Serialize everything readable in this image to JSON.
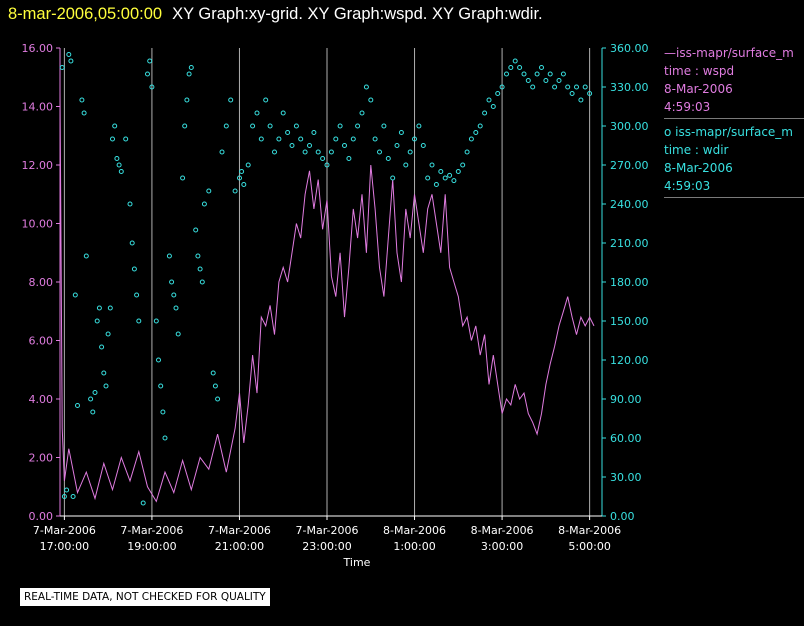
{
  "header": {
    "datetime": "8-mar-2006,05:00:00",
    "graphs": "XY Graph:xy-grid.  XY Graph:wspd.  XY Graph:wdir."
  },
  "colors": {
    "background": "#000000",
    "title_date": "#ffff3c",
    "wspd": "#e07ce0",
    "wdir": "#38e0e0",
    "grid": "#b0b0b0",
    "x_axis": "#ffffff"
  },
  "legend": {
    "wspd": {
      "name": "iss-mapr/surface_m",
      "field": "time : wspd",
      "date": "8-Mar-2006",
      "time": "4:59:03"
    },
    "wdir": {
      "name": "iss-mapr/surface_m",
      "field": "time : wdir",
      "date": "8-Mar-2006",
      "time": "4:59:03"
    }
  },
  "footer": {
    "notice": "REAL-TIME DATA, NOT CHECKED FOR QUALITY"
  },
  "chart_data": {
    "type": "line",
    "xlabel": "Time",
    "x_range_hours": [
      16.9,
      5.1
    ],
    "x_ticks": [
      {
        "date": "7-Mar-2006",
        "time": "17:00:00"
      },
      {
        "date": "7-Mar-2006",
        "time": "19:00:00"
      },
      {
        "date": "7-Mar-2006",
        "time": "21:00:00"
      },
      {
        "date": "7-Mar-2006",
        "time": "23:00:00"
      },
      {
        "date": "8-Mar-2006",
        "time": "1:00:00"
      },
      {
        "date": "8-Mar-2006",
        "time": "3:00:00"
      },
      {
        "date": "8-Mar-2006",
        "time": "5:00:00"
      }
    ],
    "x_tick_hours": [
      17,
      19,
      21,
      23,
      25,
      27,
      29
    ],
    "y_left": {
      "range": [
        0,
        16
      ],
      "ticks": [
        "0.00",
        "2.00",
        "4.00",
        "6.00",
        "8.00",
        "10.00",
        "12.00",
        "14.00",
        "16.00"
      ]
    },
    "y_right": {
      "range": [
        0,
        360
      ],
      "ticks": [
        "0.00",
        "30.00",
        "60.00",
        "90.00",
        "120.00",
        "150.00",
        "180.00",
        "210.00",
        "240.00",
        "270.00",
        "300.00",
        "330.00",
        "360.00"
      ]
    },
    "grid": "vertical",
    "series": [
      {
        "name": "iss-mapr/surface_m time : wspd",
        "axis": "left",
        "style": "line",
        "points": [
          [
            16.9,
            14.5
          ],
          [
            16.95,
            3.0
          ],
          [
            17.0,
            1.2
          ],
          [
            17.1,
            2.3
          ],
          [
            17.3,
            0.8
          ],
          [
            17.5,
            1.5
          ],
          [
            17.7,
            0.6
          ],
          [
            17.9,
            1.8
          ],
          [
            18.1,
            0.9
          ],
          [
            18.3,
            2.0
          ],
          [
            18.5,
            1.2
          ],
          [
            18.7,
            2.2
          ],
          [
            18.9,
            1.0
          ],
          [
            19.1,
            0.5
          ],
          [
            19.3,
            1.5
          ],
          [
            19.5,
            0.8
          ],
          [
            19.7,
            1.9
          ],
          [
            19.9,
            0.9
          ],
          [
            20.1,
            2.0
          ],
          [
            20.3,
            1.6
          ],
          [
            20.5,
            2.8
          ],
          [
            20.7,
            1.5
          ],
          [
            20.9,
            3.0
          ],
          [
            21.0,
            4.2
          ],
          [
            21.1,
            2.5
          ],
          [
            21.2,
            3.8
          ],
          [
            21.3,
            5.5
          ],
          [
            21.4,
            4.2
          ],
          [
            21.5,
            6.8
          ],
          [
            21.6,
            6.5
          ],
          [
            21.7,
            7.2
          ],
          [
            21.8,
            6.2
          ],
          [
            21.9,
            8.0
          ],
          [
            22.0,
            8.5
          ],
          [
            22.1,
            8.0
          ],
          [
            22.2,
            9.0
          ],
          [
            22.3,
            10.0
          ],
          [
            22.4,
            9.5
          ],
          [
            22.5,
            11.0
          ],
          [
            22.6,
            11.8
          ],
          [
            22.7,
            10.5
          ],
          [
            22.8,
            11.5
          ],
          [
            22.9,
            9.8
          ],
          [
            23.0,
            10.8
          ],
          [
            23.1,
            8.2
          ],
          [
            23.2,
            7.5
          ],
          [
            23.3,
            9.0
          ],
          [
            23.4,
            6.8
          ],
          [
            23.5,
            8.5
          ],
          [
            23.6,
            10.5
          ],
          [
            23.7,
            9.5
          ],
          [
            23.8,
            11.0
          ],
          [
            23.9,
            9.0
          ],
          [
            24.0,
            12.0
          ],
          [
            24.1,
            10.5
          ],
          [
            24.2,
            8.5
          ],
          [
            24.3,
            7.5
          ],
          [
            24.4,
            9.5
          ],
          [
            24.5,
            11.5
          ],
          [
            24.6,
            9.0
          ],
          [
            24.7,
            8.0
          ],
          [
            24.8,
            10.5
          ],
          [
            24.9,
            9.5
          ],
          [
            25.0,
            11.0
          ],
          [
            25.1,
            10.0
          ],
          [
            25.2,
            9.0
          ],
          [
            25.3,
            10.5
          ],
          [
            25.4,
            11.0
          ],
          [
            25.5,
            10.0
          ],
          [
            25.6,
            9.0
          ],
          [
            25.7,
            11.0
          ],
          [
            25.8,
            8.5
          ],
          [
            25.9,
            8.0
          ],
          [
            26.0,
            7.5
          ],
          [
            26.1,
            6.5
          ],
          [
            26.2,
            6.8
          ],
          [
            26.3,
            6.0
          ],
          [
            26.4,
            6.5
          ],
          [
            26.5,
            5.5
          ],
          [
            26.6,
            6.2
          ],
          [
            26.7,
            4.5
          ],
          [
            26.8,
            5.5
          ],
          [
            26.9,
            4.5
          ],
          [
            27.0,
            3.5
          ],
          [
            27.1,
            4.0
          ],
          [
            27.2,
            3.8
          ],
          [
            27.3,
            4.5
          ],
          [
            27.4,
            4.0
          ],
          [
            27.5,
            4.2
          ],
          [
            27.6,
            3.5
          ],
          [
            27.7,
            3.2
          ],
          [
            27.8,
            2.8
          ],
          [
            27.9,
            3.5
          ],
          [
            28.0,
            4.5
          ],
          [
            28.1,
            5.2
          ],
          [
            28.2,
            5.8
          ],
          [
            28.3,
            6.5
          ],
          [
            28.4,
            7.0
          ],
          [
            28.5,
            7.5
          ],
          [
            28.6,
            6.8
          ],
          [
            28.7,
            6.2
          ],
          [
            28.8,
            6.8
          ],
          [
            28.9,
            6.5
          ],
          [
            29.0,
            6.8
          ],
          [
            29.1,
            6.5
          ]
        ]
      },
      {
        "name": "iss-mapr/surface_m time : wdir",
        "axis": "right",
        "style": "markers",
        "points": [
          [
            16.95,
            345
          ],
          [
            17.0,
            15
          ],
          [
            17.05,
            20
          ],
          [
            17.1,
            355
          ],
          [
            17.15,
            350
          ],
          [
            17.2,
            15
          ],
          [
            17.25,
            170
          ],
          [
            17.3,
            85
          ],
          [
            17.4,
            320
          ],
          [
            17.45,
            310
          ],
          [
            17.5,
            200
          ],
          [
            17.6,
            90
          ],
          [
            17.65,
            80
          ],
          [
            17.7,
            95
          ],
          [
            17.75,
            150
          ],
          [
            17.8,
            160
          ],
          [
            17.85,
            130
          ],
          [
            17.9,
            110
          ],
          [
            17.95,
            100
          ],
          [
            18.0,
            140
          ],
          [
            18.05,
            160
          ],
          [
            18.1,
            290
          ],
          [
            18.15,
            300
          ],
          [
            18.2,
            275
          ],
          [
            18.25,
            270
          ],
          [
            18.3,
            265
          ],
          [
            18.4,
            290
          ],
          [
            18.5,
            240
          ],
          [
            18.55,
            210
          ],
          [
            18.6,
            190
          ],
          [
            18.65,
            170
          ],
          [
            18.7,
            150
          ],
          [
            18.8,
            10
          ],
          [
            18.9,
            340
          ],
          [
            18.95,
            350
          ],
          [
            19.0,
            330
          ],
          [
            19.1,
            150
          ],
          [
            19.15,
            120
          ],
          [
            19.2,
            100
          ],
          [
            19.25,
            80
          ],
          [
            19.3,
            60
          ],
          [
            19.4,
            200
          ],
          [
            19.45,
            180
          ],
          [
            19.5,
            170
          ],
          [
            19.55,
            160
          ],
          [
            19.6,
            140
          ],
          [
            19.7,
            260
          ],
          [
            19.75,
            300
          ],
          [
            19.8,
            320
          ],
          [
            19.85,
            340
          ],
          [
            19.9,
            345
          ],
          [
            20.0,
            220
          ],
          [
            20.05,
            200
          ],
          [
            20.1,
            190
          ],
          [
            20.15,
            180
          ],
          [
            20.2,
            240
          ],
          [
            20.3,
            250
          ],
          [
            20.4,
            110
          ],
          [
            20.45,
            100
          ],
          [
            20.5,
            90
          ],
          [
            20.6,
            280
          ],
          [
            20.7,
            300
          ],
          [
            20.8,
            320
          ],
          [
            20.9,
            250
          ],
          [
            21.0,
            260
          ],
          [
            21.05,
            265
          ],
          [
            21.1,
            255
          ],
          [
            21.2,
            270
          ],
          [
            21.3,
            300
          ],
          [
            21.4,
            310
          ],
          [
            21.5,
            290
          ],
          [
            21.6,
            320
          ],
          [
            21.7,
            300
          ],
          [
            21.8,
            280
          ],
          [
            21.9,
            290
          ],
          [
            22.0,
            310
          ],
          [
            22.1,
            295
          ],
          [
            22.2,
            285
          ],
          [
            22.3,
            300
          ],
          [
            22.4,
            290
          ],
          [
            22.5,
            280
          ],
          [
            22.6,
            285
          ],
          [
            22.7,
            295
          ],
          [
            22.8,
            280
          ],
          [
            22.9,
            275
          ],
          [
            23.0,
            270
          ],
          [
            23.1,
            280
          ],
          [
            23.2,
            290
          ],
          [
            23.3,
            300
          ],
          [
            23.4,
            285
          ],
          [
            23.5,
            275
          ],
          [
            23.6,
            290
          ],
          [
            23.7,
            300
          ],
          [
            23.8,
            310
          ],
          [
            23.9,
            330
          ],
          [
            24.0,
            320
          ],
          [
            24.1,
            290
          ],
          [
            24.2,
            280
          ],
          [
            24.3,
            300
          ],
          [
            24.4,
            275
          ],
          [
            24.5,
            260
          ],
          [
            24.6,
            285
          ],
          [
            24.7,
            295
          ],
          [
            24.8,
            270
          ],
          [
            24.9,
            280
          ],
          [
            25.0,
            290
          ],
          [
            25.1,
            300
          ],
          [
            25.2,
            285
          ],
          [
            25.3,
            260
          ],
          [
            25.4,
            270
          ],
          [
            25.5,
            255
          ],
          [
            25.6,
            265
          ],
          [
            25.7,
            260
          ],
          [
            25.8,
            262
          ],
          [
            25.9,
            258
          ],
          [
            26.0,
            265
          ],
          [
            26.1,
            270
          ],
          [
            26.2,
            280
          ],
          [
            26.3,
            290
          ],
          [
            26.4,
            295
          ],
          [
            26.5,
            300
          ],
          [
            26.6,
            310
          ],
          [
            26.7,
            320
          ],
          [
            26.8,
            315
          ],
          [
            26.9,
            325
          ],
          [
            27.0,
            330
          ],
          [
            27.1,
            340
          ],
          [
            27.2,
            345
          ],
          [
            27.3,
            350
          ],
          [
            27.4,
            345
          ],
          [
            27.5,
            340
          ],
          [
            27.6,
            335
          ],
          [
            27.7,
            330
          ],
          [
            27.8,
            340
          ],
          [
            27.9,
            345
          ],
          [
            28.0,
            335
          ],
          [
            28.1,
            340
          ],
          [
            28.2,
            330
          ],
          [
            28.3,
            335
          ],
          [
            28.4,
            340
          ],
          [
            28.5,
            330
          ],
          [
            28.6,
            325
          ],
          [
            28.7,
            330
          ],
          [
            28.8,
            320
          ],
          [
            28.9,
            330
          ],
          [
            29.0,
            325
          ]
        ]
      }
    ]
  }
}
